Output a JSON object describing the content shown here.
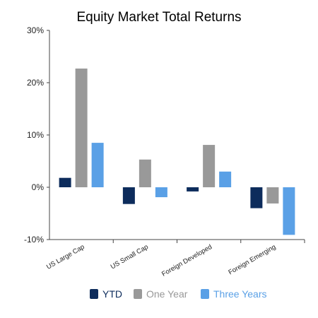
{
  "chart_data": {
    "type": "bar",
    "title": "Equity Market Total Returns",
    "categories": [
      "US Large Cap",
      "US Small Cap",
      "Foreign Developed",
      "Foreign Emerging"
    ],
    "series": [
      {
        "name": "YTD",
        "color": "#0d2c5c",
        "values": [
          1.8,
          -3.2,
          -0.8,
          -4.0
        ]
      },
      {
        "name": "One Year",
        "color": "#999999",
        "values": [
          22.7,
          5.3,
          8.1,
          -3.1
        ]
      },
      {
        "name": "Three Years",
        "color": "#5aa0e6",
        "values": [
          8.5,
          -1.9,
          3.0,
          -9.1
        ]
      }
    ],
    "ylim": [
      -10,
      30
    ],
    "yticks": [
      -10,
      0,
      10,
      20,
      30
    ],
    "ytick_labels": [
      "-10%",
      "0%",
      "10%",
      "20%",
      "30%"
    ],
    "legend_position": "bottom",
    "grid": false
  }
}
